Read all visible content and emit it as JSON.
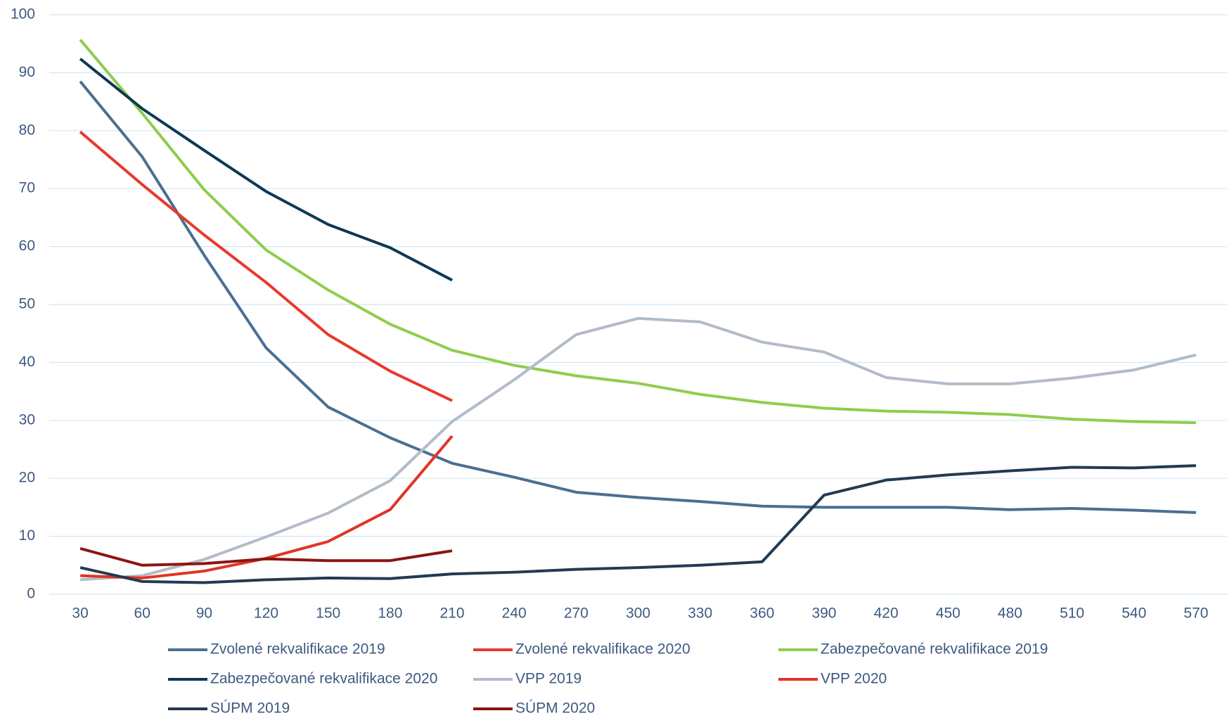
{
  "chart_data": {
    "type": "line",
    "x": [
      30,
      60,
      90,
      120,
      150,
      180,
      210,
      240,
      270,
      300,
      330,
      360,
      390,
      420,
      450,
      480,
      510,
      540,
      570
    ],
    "xlim": [
      15,
      585
    ],
    "ylim": [
      0,
      100
    ],
    "yticks": [
      0,
      10,
      20,
      30,
      40,
      50,
      60,
      70,
      80,
      90,
      100
    ],
    "grid": true,
    "legend": "bottom",
    "series": [
      {
        "name": "Zvolené rekvalifikace 2019",
        "color": "#4a6f91",
        "values": [
          88.5,
          75.5,
          58.5,
          42.5,
          32.3,
          27,
          22.6,
          20.2,
          17.6,
          16.7,
          16,
          15.2,
          15,
          15,
          15,
          14.6,
          14.8,
          14.5,
          14.1
        ]
      },
      {
        "name": "Zvolené rekvalifikace 2020",
        "color": "#e8392d",
        "values": [
          79.8,
          70.7,
          62,
          53.8,
          44.8,
          38.5,
          33.4,
          null,
          null,
          null,
          null,
          null,
          null,
          null,
          null,
          null,
          null,
          null,
          null
        ]
      },
      {
        "name": "Zabezpečované rekvalifikace 2019",
        "color": "#8fcd4d",
        "values": [
          95.7,
          83,
          69.8,
          59.4,
          52.5,
          46.6,
          42.1,
          39.5,
          37.7,
          36.4,
          34.5,
          33.1,
          32.1,
          31.6,
          31.4,
          31,
          30.2,
          29.8,
          29.6
        ]
      },
      {
        "name": "Zabezpečované rekvalifikace 2020",
        "color": "#0d3755",
        "values": [
          92.4,
          83.8,
          76.6,
          69.5,
          63.8,
          59.8,
          54.2,
          null,
          null,
          null,
          null,
          null,
          null,
          null,
          null,
          null,
          null,
          null,
          null
        ]
      },
      {
        "name": "VPP 2019",
        "color": "#b3bbc8",
        "values": [
          2.5,
          3.2,
          6,
          9.9,
          14,
          19.6,
          29.8,
          37,
          44.8,
          47.6,
          47,
          43.5,
          41.8,
          37.4,
          36.3,
          36.3,
          37.3,
          38.7,
          41.3
        ]
      },
      {
        "name": "VPP 2020",
        "color": "#e03525",
        "values": [
          3.2,
          2.8,
          4,
          6.2,
          9.1,
          14.6,
          27.3,
          null,
          null,
          null,
          null,
          null,
          null,
          null,
          null,
          null,
          null,
          null,
          null
        ]
      },
      {
        "name": "SÚPM 2019",
        "color": "#243a50",
        "values": [
          4.6,
          2.2,
          2,
          2.5,
          2.8,
          2.7,
          3.5,
          3.8,
          4.3,
          4.6,
          5,
          5.6,
          17.1,
          19.7,
          20.6,
          21.3,
          21.9,
          21.8,
          22.2
        ]
      },
      {
        "name": "SÚPM 2020",
        "color": "#8b1512",
        "values": [
          7.9,
          5,
          5.3,
          6.1,
          5.8,
          5.8,
          7.5,
          null,
          null,
          null,
          null,
          null,
          null,
          null,
          null,
          null,
          null,
          null,
          null
        ]
      }
    ]
  }
}
